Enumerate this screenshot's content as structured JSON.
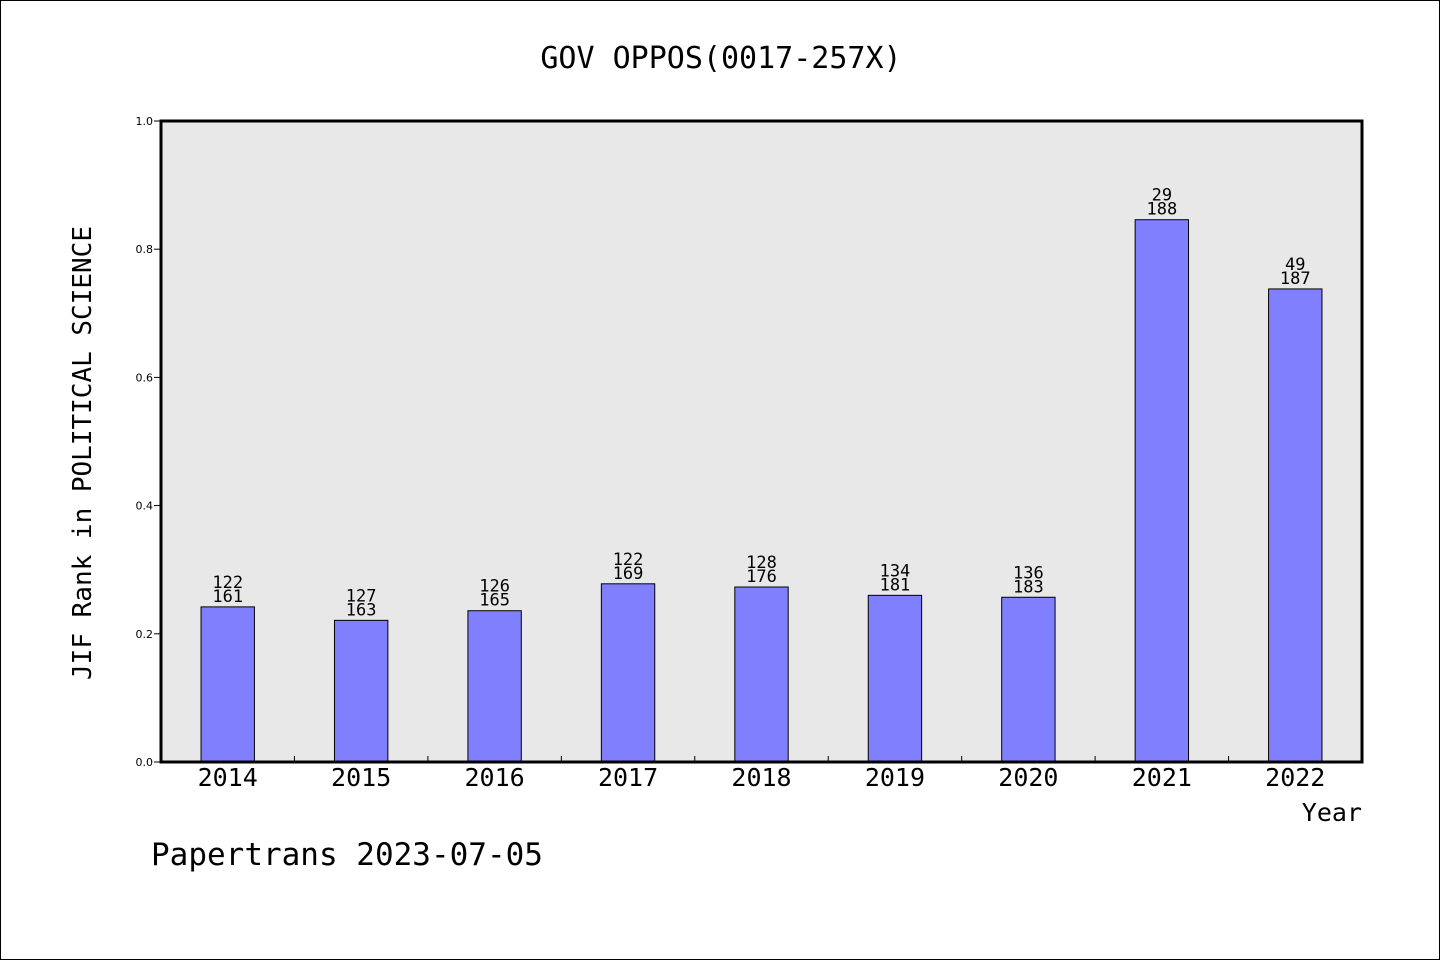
{
  "chart_data": {
    "type": "bar",
    "title": "GOV OPPOS(0017-257X)",
    "xlabel": "Year",
    "ylabel": "JIF Rank in POLITICAL SCIENCE",
    "ylim": [
      0.0,
      1.0
    ],
    "yticks": [
      "0.0",
      "0.2",
      "0.4",
      "0.6",
      "0.8",
      "1.0"
    ],
    "categories": [
      "2014",
      "2015",
      "2016",
      "2017",
      "2018",
      "2019",
      "2020",
      "2021",
      "2022"
    ],
    "values": [
      0.242,
      0.221,
      0.236,
      0.278,
      0.273,
      0.26,
      0.257,
      0.846,
      0.738
    ],
    "rank": [
      "122",
      "127",
      "126",
      "122",
      "128",
      "134",
      "136",
      "29",
      "49"
    ],
    "total": [
      "161",
      "163",
      "165",
      "169",
      "176",
      "181",
      "183",
      "188",
      "187"
    ],
    "grid": false,
    "colors": {
      "bar_fill": "#8080ff",
      "bar_stroke": "#000000",
      "plot_background": "#e8e8e8"
    }
  },
  "footer": {
    "text": "Papertrans 2023-07-05"
  }
}
